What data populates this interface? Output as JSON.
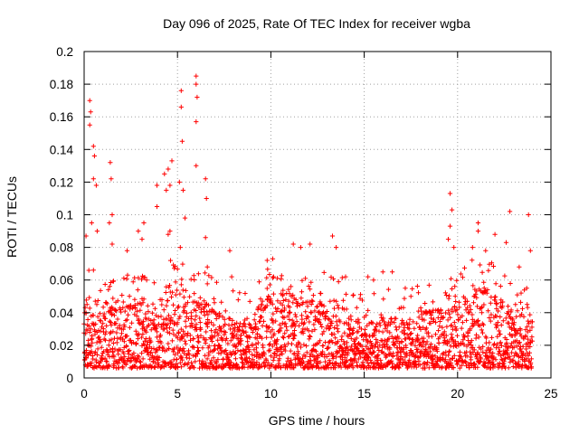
{
  "chart_data": {
    "type": "scatter",
    "title": "Day 096 of 2025, Rate Of TEC Index for receiver wgba",
    "xlabel": "GPS time / hours",
    "ylabel": "ROTI / TECUs",
    "xlim": [
      0,
      25
    ],
    "ylim": [
      0,
      0.2
    ],
    "x_ticks": [
      0,
      5,
      10,
      15,
      20,
      25
    ],
    "y_ticks": [
      0,
      0.02,
      0.04,
      0.06,
      0.08,
      0.1,
      0.12,
      0.14,
      0.16,
      0.18,
      0.2
    ],
    "x_tick_labels": [
      "0",
      "5",
      "10",
      "15",
      "20",
      "25"
    ],
    "y_tick_labels": [
      "0",
      "0.02",
      "0.04",
      "0.06",
      "0.08",
      "0.1",
      "0.12",
      "0.14",
      "0.16",
      "0.18",
      "0.2"
    ],
    "grid": true,
    "marker": "+",
    "series_color": "#ff0000",
    "series": [
      {
        "name": "ROTI",
        "envelope_x": [
          0,
          0.5,
          1,
          1.5,
          2,
          2.5,
          3,
          3.5,
          4,
          4.5,
          5,
          5.5,
          6,
          6.5,
          7,
          7.5,
          8,
          8.5,
          9,
          9.5,
          10,
          10.5,
          11,
          11.5,
          12,
          12.5,
          13,
          13.5,
          14,
          14.5,
          15,
          15.5,
          16,
          16.5,
          17,
          17.5,
          18,
          18.5,
          19,
          19.5,
          20,
          20.5,
          21,
          21.5,
          22,
          22.5,
          23,
          23.5,
          24
        ],
        "typical_upper": [
          0.045,
          0.05,
          0.045,
          0.048,
          0.04,
          0.045,
          0.048,
          0.045,
          0.045,
          0.055,
          0.055,
          0.06,
          0.05,
          0.045,
          0.04,
          0.035,
          0.035,
          0.035,
          0.035,
          0.045,
          0.05,
          0.05,
          0.05,
          0.045,
          0.045,
          0.045,
          0.045,
          0.045,
          0.04,
          0.035,
          0.03,
          0.035,
          0.035,
          0.035,
          0.035,
          0.035,
          0.04,
          0.04,
          0.04,
          0.04,
          0.045,
          0.05,
          0.055,
          0.055,
          0.05,
          0.045,
          0.04,
          0.04,
          0.035
        ],
        "peaks": [
          {
            "x": 0.1,
            "y": 0.087
          },
          {
            "x": 0.3,
            "y": 0.17
          },
          {
            "x": 0.35,
            "y": 0.163
          },
          {
            "x": 0.3,
            "y": 0.155
          },
          {
            "x": 0.5,
            "y": 0.142
          },
          {
            "x": 0.55,
            "y": 0.136
          },
          {
            "x": 0.5,
            "y": 0.122
          },
          {
            "x": 0.65,
            "y": 0.118
          },
          {
            "x": 0.4,
            "y": 0.095
          },
          {
            "x": 0.7,
            "y": 0.09
          },
          {
            "x": 1.4,
            "y": 0.132
          },
          {
            "x": 1.45,
            "y": 0.122
          },
          {
            "x": 1.5,
            "y": 0.1
          },
          {
            "x": 1.35,
            "y": 0.095
          },
          {
            "x": 1.5,
            "y": 0.082
          },
          {
            "x": 2.3,
            "y": 0.078
          },
          {
            "x": 2.9,
            "y": 0.09
          },
          {
            "x": 3.1,
            "y": 0.085
          },
          {
            "x": 3.2,
            "y": 0.095
          },
          {
            "x": 3.9,
            "y": 0.118
          },
          {
            "x": 3.9,
            "y": 0.105
          },
          {
            "x": 4.3,
            "y": 0.125
          },
          {
            "x": 4.5,
            "y": 0.128
          },
          {
            "x": 4.6,
            "y": 0.118
          },
          {
            "x": 4.7,
            "y": 0.133
          },
          {
            "x": 4.4,
            "y": 0.115
          },
          {
            "x": 4.6,
            "y": 0.09
          },
          {
            "x": 4.5,
            "y": 0.088
          },
          {
            "x": 5.2,
            "y": 0.176
          },
          {
            "x": 5.2,
            "y": 0.166
          },
          {
            "x": 5.25,
            "y": 0.145
          },
          {
            "x": 5.1,
            "y": 0.12
          },
          {
            "x": 5.3,
            "y": 0.115
          },
          {
            "x": 5.4,
            "y": 0.098
          },
          {
            "x": 5.15,
            "y": 0.08
          },
          {
            "x": 6.0,
            "y": 0.185
          },
          {
            "x": 6.0,
            "y": 0.18
          },
          {
            "x": 6.05,
            "y": 0.172
          },
          {
            "x": 6.0,
            "y": 0.157
          },
          {
            "x": 6.0,
            "y": 0.13
          },
          {
            "x": 6.5,
            "y": 0.122
          },
          {
            "x": 6.55,
            "y": 0.11
          },
          {
            "x": 6.5,
            "y": 0.086
          },
          {
            "x": 6.6,
            "y": 0.068
          },
          {
            "x": 7.8,
            "y": 0.078
          },
          {
            "x": 7.9,
            "y": 0.062
          },
          {
            "x": 9.8,
            "y": 0.072
          },
          {
            "x": 10.1,
            "y": 0.073
          },
          {
            "x": 11.2,
            "y": 0.082
          },
          {
            "x": 11.6,
            "y": 0.08
          },
          {
            "x": 12.1,
            "y": 0.082
          },
          {
            "x": 13.3,
            "y": 0.087
          },
          {
            "x": 13.5,
            "y": 0.08
          },
          {
            "x": 14.0,
            "y": 0.062
          },
          {
            "x": 15.2,
            "y": 0.062
          },
          {
            "x": 15.5,
            "y": 0.06
          },
          {
            "x": 16.0,
            "y": 0.065
          },
          {
            "x": 16.5,
            "y": 0.065
          },
          {
            "x": 17.2,
            "y": 0.055
          },
          {
            "x": 19.6,
            "y": 0.113
          },
          {
            "x": 19.7,
            "y": 0.103
          },
          {
            "x": 19.6,
            "y": 0.093
          },
          {
            "x": 19.5,
            "y": 0.085
          },
          {
            "x": 19.8,
            "y": 0.08
          },
          {
            "x": 20.8,
            "y": 0.08
          },
          {
            "x": 21.1,
            "y": 0.095
          },
          {
            "x": 21.1,
            "y": 0.09
          },
          {
            "x": 21.5,
            "y": 0.078
          },
          {
            "x": 22.0,
            "y": 0.088
          },
          {
            "x": 22.6,
            "y": 0.083
          },
          {
            "x": 22.8,
            "y": 0.102
          },
          {
            "x": 23.3,
            "y": 0.068
          },
          {
            "x": 23.8,
            "y": 0.1
          },
          {
            "x": 23.9,
            "y": 0.078
          }
        ]
      }
    ]
  }
}
